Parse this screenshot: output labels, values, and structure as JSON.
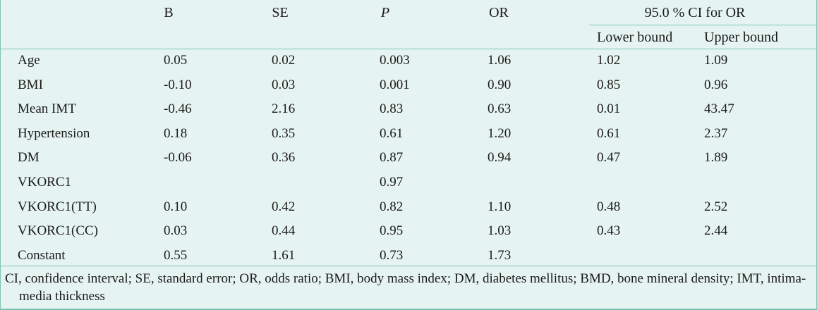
{
  "table": {
    "headers": {
      "b": "B",
      "se": "SE",
      "p": "P",
      "or": "OR",
      "ci": "95.0 % CI for OR",
      "lower": "Lower bound",
      "upper": "Upper bound"
    },
    "rows": [
      {
        "label": "Age",
        "b": "0.05",
        "se": "0.02",
        "p": "0.003",
        "or": "1.06",
        "lower": "1.02",
        "upper": "1.09"
      },
      {
        "label": "BMI",
        "b": "-0.10",
        "se": "0.03",
        "p": "0.001",
        "or": "0.90",
        "lower": "0.85",
        "upper": "0.96"
      },
      {
        "label": "Mean IMT",
        "b": "-0.46",
        "se": "2.16",
        "p": "0.83",
        "or": "0.63",
        "lower": "0.01",
        "upper": "43.47"
      },
      {
        "label": "Hypertension",
        "b": "0.18",
        "se": "0.35",
        "p": "0.61",
        "or": "1.20",
        "lower": "0.61",
        "upper": "2.37"
      },
      {
        "label": "DM",
        "b": "-0.06",
        "se": "0.36",
        "p": "0.87",
        "or": "0.94",
        "lower": "0.47",
        "upper": "1.89"
      },
      {
        "label": "VKORC1",
        "b": "",
        "se": "",
        "p": "0.97",
        "or": "",
        "lower": "",
        "upper": ""
      },
      {
        "label": "VKORC1(TT)",
        "b": "0.10",
        "se": "0.42",
        "p": "0.82",
        "or": "1.10",
        "lower": "0.48",
        "upper": "2.52"
      },
      {
        "label": "VKORC1(CC)",
        "b": "0.03",
        "se": "0.44",
        "p": "0.95",
        "or": "1.03",
        "lower": "0.43",
        "upper": "2.44"
      },
      {
        "label": "Constant",
        "b": "0.55",
        "se": "1.61",
        "p": "0.73",
        "or": "1.73",
        "lower": "",
        "upper": ""
      }
    ],
    "footnote": "CI, confidence interval; SE, standard error; OR, odds ratio; BMI, body mass index; DM, diabetes mellitus; BMD, bone mineral density; IMT, intima-media thickness"
  }
}
